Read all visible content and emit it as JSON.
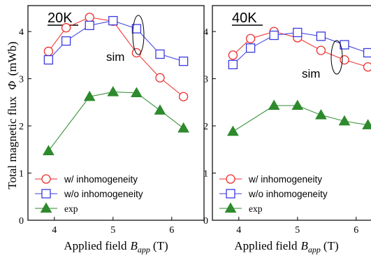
{
  "colors": {
    "with_inhom": "#ee2b2b",
    "without_inhom": "#3a3ae0",
    "exp": "#2d8a2d",
    "axis": "#000000"
  },
  "shared": {
    "ylabel": "Total magnetic flux",
    "ylabel_symbol": "Φ",
    "ylabel_unit": "(mWb)",
    "xlabel": "Applied field",
    "xlabel_symbol": "B",
    "xlabel_sub": "app",
    "xlabel_unit": "(T)",
    "sim_label": "sim"
  },
  "chart_data": [
    {
      "type": "line",
      "title": "20K",
      "x_ticks": [
        4,
        5,
        6
      ],
      "y_ticks": [
        0,
        1,
        2,
        3,
        4
      ],
      "xlim": [
        3.55,
        6.55
      ],
      "ylim": [
        0,
        4.55
      ],
      "legend": "bottom-left",
      "grid": false,
      "series": [
        {
          "name": "w/ inhomogeneity",
          "marker": "circle",
          "color_key": "with_inhom",
          "x": [
            3.9,
            4.2,
            4.6,
            5.0,
            5.4,
            5.8,
            6.2
          ],
          "y": [
            3.58,
            4.08,
            4.3,
            4.22,
            3.55,
            3.02,
            2.62
          ]
        },
        {
          "name": "w/o inhomogeneity",
          "marker": "square",
          "color_key": "without_inhom",
          "x": [
            3.9,
            4.2,
            4.6,
            5.0,
            5.4,
            5.8,
            6.2
          ],
          "y": [
            3.4,
            3.8,
            4.13,
            4.23,
            4.06,
            3.52,
            3.37
          ]
        },
        {
          "name": "exp",
          "marker": "triangle",
          "color_key": "exp",
          "x": [
            3.9,
            4.6,
            5.0,
            5.4,
            5.8,
            6.2
          ],
          "y": [
            1.47,
            2.62,
            2.72,
            2.7,
            2.33,
            1.95
          ]
        }
      ]
    },
    {
      "type": "line",
      "title": "40K",
      "x_ticks": [
        4,
        5,
        6
      ],
      "y_ticks": [
        0,
        1,
        2,
        3,
        4
      ],
      "xlim": [
        3.55,
        6.55
      ],
      "ylim": [
        0,
        4.55
      ],
      "legend": "bottom-left",
      "grid": false,
      "series": [
        {
          "name": "w/ inhomogeneity",
          "marker": "circle",
          "color_key": "with_inhom",
          "x": [
            3.9,
            4.2,
            4.6,
            5.0,
            5.4,
            5.8,
            6.2
          ],
          "y": [
            3.5,
            3.85,
            4.0,
            3.87,
            3.6,
            3.4,
            3.25
          ]
        },
        {
          "name": "w/o inhomogeneity",
          "marker": "square",
          "color_key": "without_inhom",
          "x": [
            3.9,
            4.2,
            4.6,
            5.0,
            5.4,
            5.8,
            6.2
          ],
          "y": [
            3.3,
            3.65,
            3.92,
            3.98,
            3.9,
            3.72,
            3.55
          ]
        },
        {
          "name": "exp",
          "marker": "triangle",
          "color_key": "exp",
          "x": [
            3.9,
            4.6,
            5.0,
            5.4,
            5.8,
            6.2
          ],
          "y": [
            1.88,
            2.43,
            2.43,
            2.23,
            2.1,
            2.02
          ]
        }
      ]
    }
  ]
}
